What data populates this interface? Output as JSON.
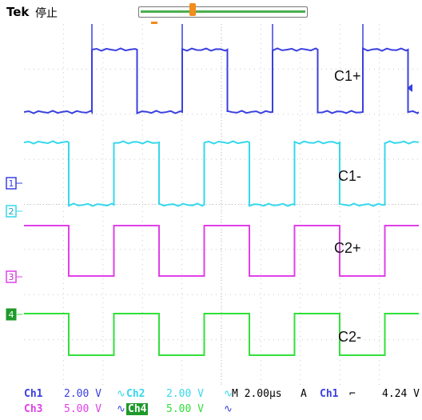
{
  "header": {
    "brand": "Tek",
    "status": "停止"
  },
  "labels": {
    "c1p": "C1+",
    "c1m": "C1-",
    "c2p": "C2+",
    "c2m": "C2-"
  },
  "markers": {
    "ch1": "1",
    "ch2": "2",
    "ch3": "3",
    "ch4": "4"
  },
  "colors": {
    "ch1": "#3a40e0",
    "ch2": "#36d8ec",
    "ch3": "#e040e8",
    "ch4": "#32e03a",
    "trigger": "#f28c1a"
  },
  "readout": {
    "ch1_name": "Ch1",
    "ch1_scale": "2.00 V",
    "ch2_name": "Ch2",
    "ch2_scale": "2.00 V",
    "ch3_name": "Ch3",
    "ch3_scale": "5.00 V",
    "ch4_name": "Ch4",
    "ch4_scale": "5.00 V",
    "timebase": "M 2.00μs",
    "acq_mode": "A",
    "trig_source": "Ch1",
    "trig_slope_icon": "falling-edge-icon",
    "trig_level": "4.24 V"
  }
}
